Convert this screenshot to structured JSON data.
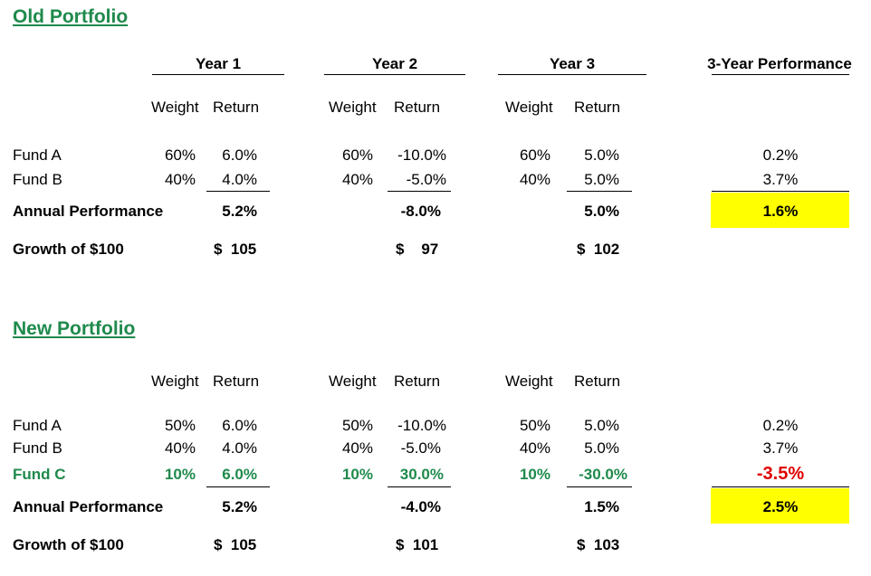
{
  "old": {
    "title": "Old Portfolio",
    "years": [
      "Year 1",
      "Year 2",
      "Year 3"
    ],
    "perf_header": "3-Year Performance",
    "weight_label": "Weight",
    "return_label": "Return",
    "funds": [
      {
        "name": "Fund A",
        "cells": [
          [
            "60%",
            "6.0%"
          ],
          [
            "60%",
            "-10.0%"
          ],
          [
            "60%",
            "5.0%"
          ]
        ],
        "perf": "0.2%"
      },
      {
        "name": "Fund B",
        "cells": [
          [
            "40%",
            "4.0%"
          ],
          [
            "40%",
            "-5.0%"
          ],
          [
            "40%",
            "5.0%"
          ]
        ],
        "perf": "3.7%"
      }
    ],
    "annual_label": "Annual Performance",
    "annual": [
      "5.2%",
      "-8.0%",
      "5.0%"
    ],
    "annual_perf": "1.6%",
    "growth_label": "Growth of $100",
    "growth": [
      "$  105",
      "$    97",
      "$  102"
    ]
  },
  "new": {
    "title": "New Portfolio",
    "weight_label": "Weight",
    "return_label": "Return",
    "funds": [
      {
        "name": "Fund A",
        "cells": [
          [
            "50%",
            "6.0%"
          ],
          [
            "50%",
            "-10.0%"
          ],
          [
            "50%",
            "5.0%"
          ]
        ],
        "perf": "0.2%"
      },
      {
        "name": "Fund B",
        "cells": [
          [
            "40%",
            "4.0%"
          ],
          [
            "40%",
            "-5.0%"
          ],
          [
            "40%",
            "5.0%"
          ]
        ],
        "perf": "3.7%"
      },
      {
        "name": "Fund C",
        "cells": [
          [
            "10%",
            "6.0%"
          ],
          [
            "10%",
            "30.0%"
          ],
          [
            "10%",
            "-30.0%"
          ]
        ],
        "perf": "-3.5%"
      }
    ],
    "annual_label": "Annual Performance",
    "annual": [
      "5.2%",
      "-4.0%",
      "1.5%"
    ],
    "annual_perf": "2.5%",
    "growth_label": "Growth of $100",
    "growth": [
      "$  105",
      "$  101",
      "$  103"
    ]
  },
  "colors": {
    "green": "#1f8a4c",
    "red": "#e00000",
    "highlight": "#ffff00"
  }
}
